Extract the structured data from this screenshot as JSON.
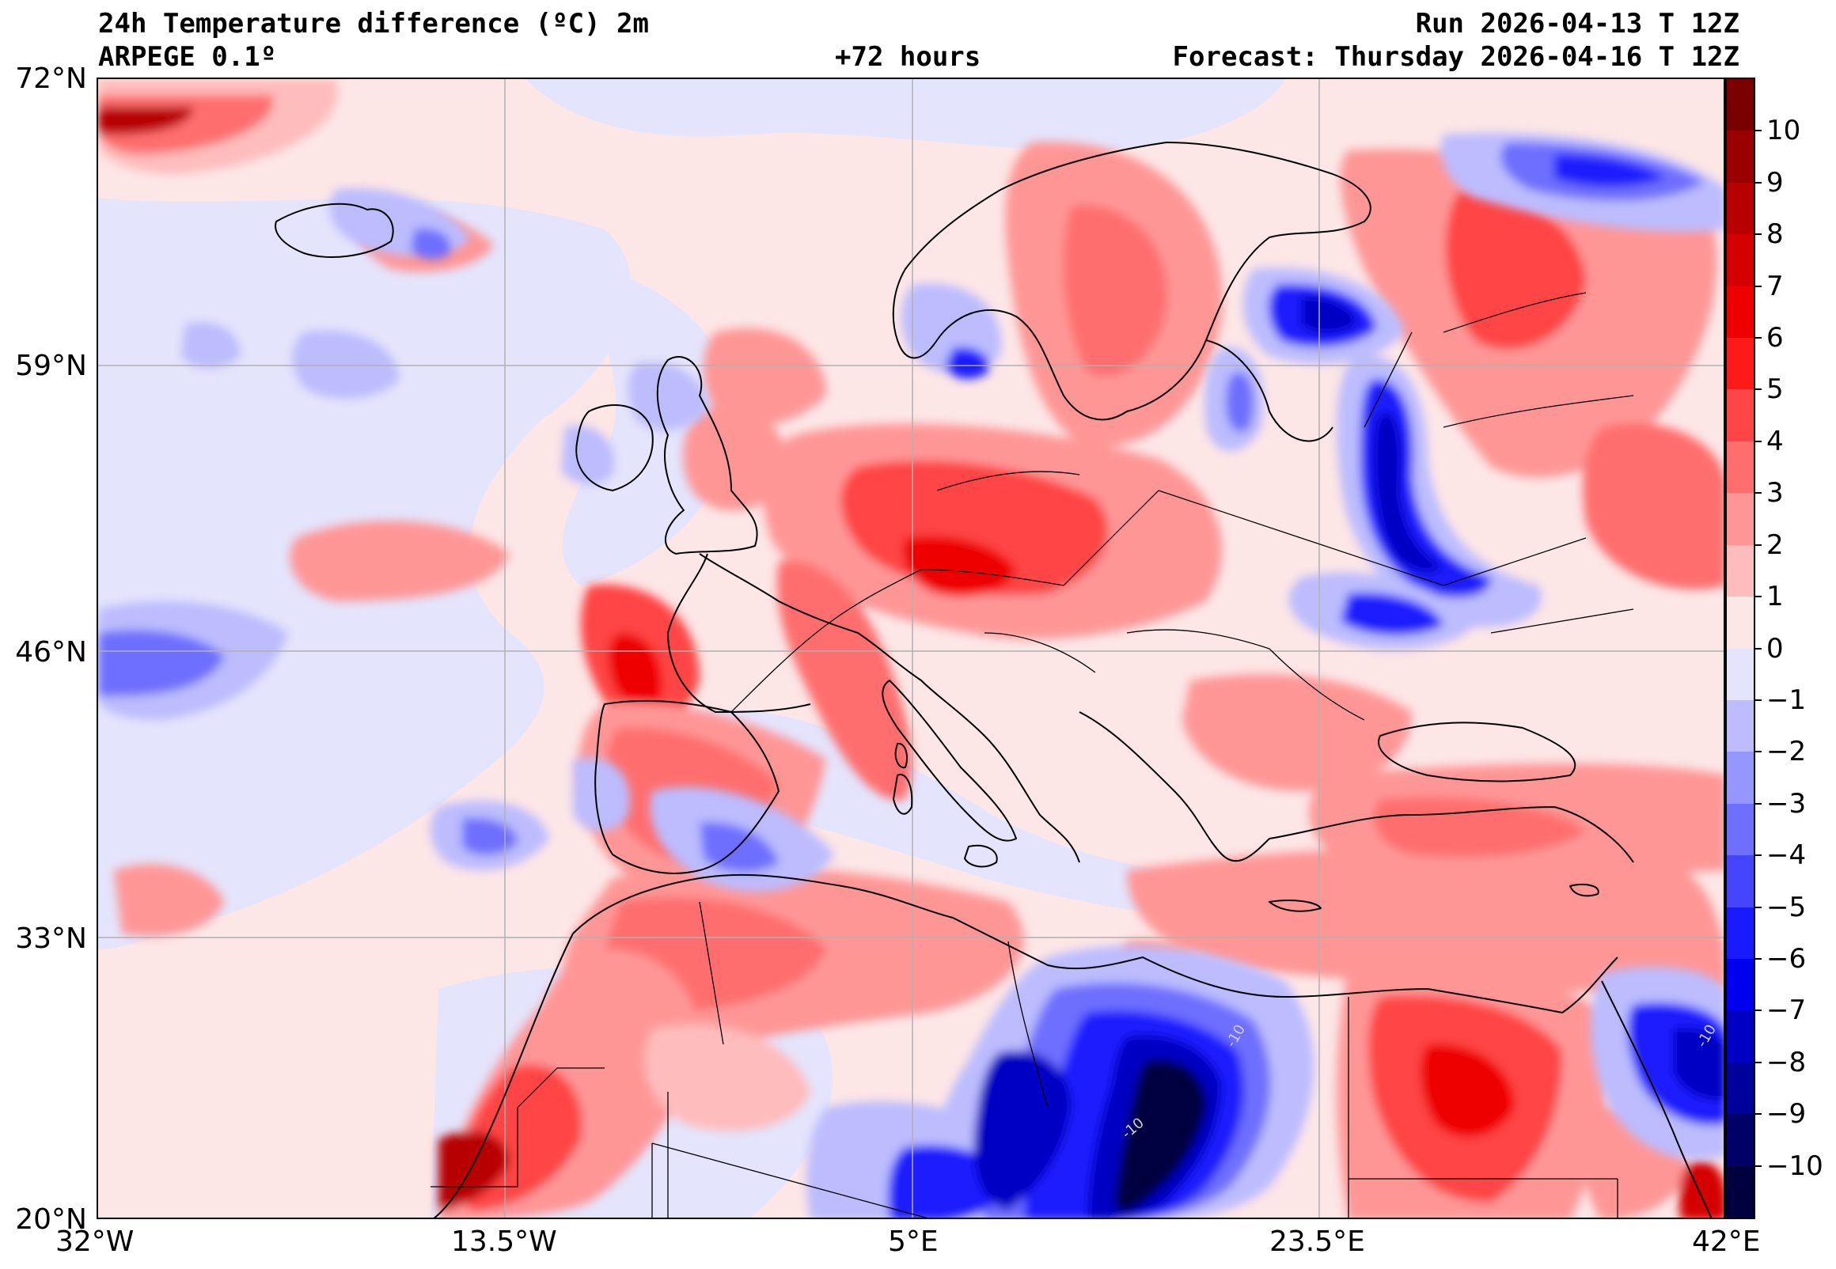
{
  "header": {
    "title": "24h Temperature difference (ºC) 2m",
    "model": "ARPEGE 0.1º",
    "lead_time": "+72 hours",
    "run": "Run 2026-04-13 T 12Z",
    "forecast": "Forecast: Thursday 2026-04-16 T 12Z"
  },
  "axes": {
    "lat_labels": [
      "72°N",
      "59°N",
      "46°N",
      "33°N",
      "20°N"
    ],
    "lon_labels": [
      "32°W",
      "13.5°W",
      "5°E",
      "23.5°E",
      "42°E"
    ]
  },
  "colorbar": {
    "labels": [
      "10",
      "9",
      "8",
      "7",
      "6",
      "5",
      "4",
      "3",
      "2",
      "1",
      "0",
      "−1",
      "−2",
      "−3",
      "−4",
      "−5",
      "−6",
      "−7",
      "−8",
      "−9",
      "−10"
    ],
    "colors_top_to_bottom": [
      "#7a0000",
      "#9b0000",
      "#b80000",
      "#d40000",
      "#ee0000",
      "#ff1a1a",
      "#ff4545",
      "#ff6e6e",
      "#ff9696",
      "#ffbcbc",
      "#fde6e6",
      "#e4e4fc",
      "#bcbcff",
      "#9696ff",
      "#6e6eff",
      "#4545ff",
      "#1a1aff",
      "#0000ee",
      "#0000c4",
      "#00009b",
      "#000066",
      "#00003f"
    ]
  },
  "contour_annotations": [
    "-10",
    "-10",
    "-10"
  ],
  "colors": {
    "warm_1": "#ffbcbc",
    "warm_2": "#ff9696",
    "warm_3": "#ff6e6e",
    "warm_4": "#ff4545",
    "warm_6": "#ee0000",
    "warm_8": "#b80000",
    "warm_10": "#7a0000",
    "neutral_pos": "#fde6e6",
    "neutral_neg": "#e4e4fc",
    "cold_2": "#bcbcff",
    "cold_3": "#9696ff",
    "cold_4": "#6e6eff",
    "cold_6": "#1a1aff",
    "cold_8": "#0000c4",
    "cold_10": "#00003f"
  }
}
